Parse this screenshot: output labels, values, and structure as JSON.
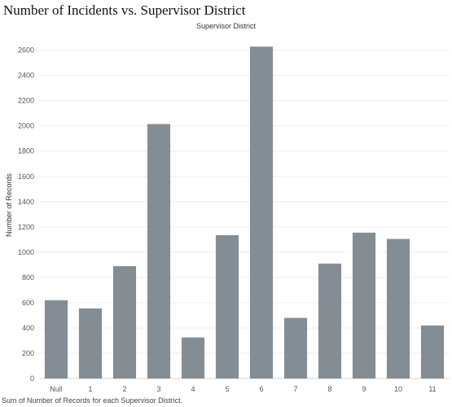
{
  "page": {
    "title": "Number of Incidents vs. Supervisor District",
    "caption": "Sum of Number of Records for each Supervisor District."
  },
  "chart_data": {
    "type": "bar",
    "title": "Number of Incidents vs. Supervisor District",
    "column_header": "Supervisor District",
    "xlabel": "",
    "ylabel": "Number of Records",
    "categories": [
      "Null",
      "1",
      "2",
      "3",
      "4",
      "5",
      "6",
      "7",
      "8",
      "9",
      "10",
      "11"
    ],
    "values": [
      620,
      555,
      890,
      2015,
      325,
      1135,
      2628,
      480,
      910,
      1155,
      1105,
      420
    ],
    "ylim": [
      0,
      2720
    ],
    "yticks": [
      0,
      200,
      400,
      600,
      800,
      1000,
      1200,
      1400,
      1600,
      1800,
      2000,
      2200,
      2400,
      2600
    ],
    "bar_color": "#858d94",
    "grid": true,
    "legend": "none"
  }
}
